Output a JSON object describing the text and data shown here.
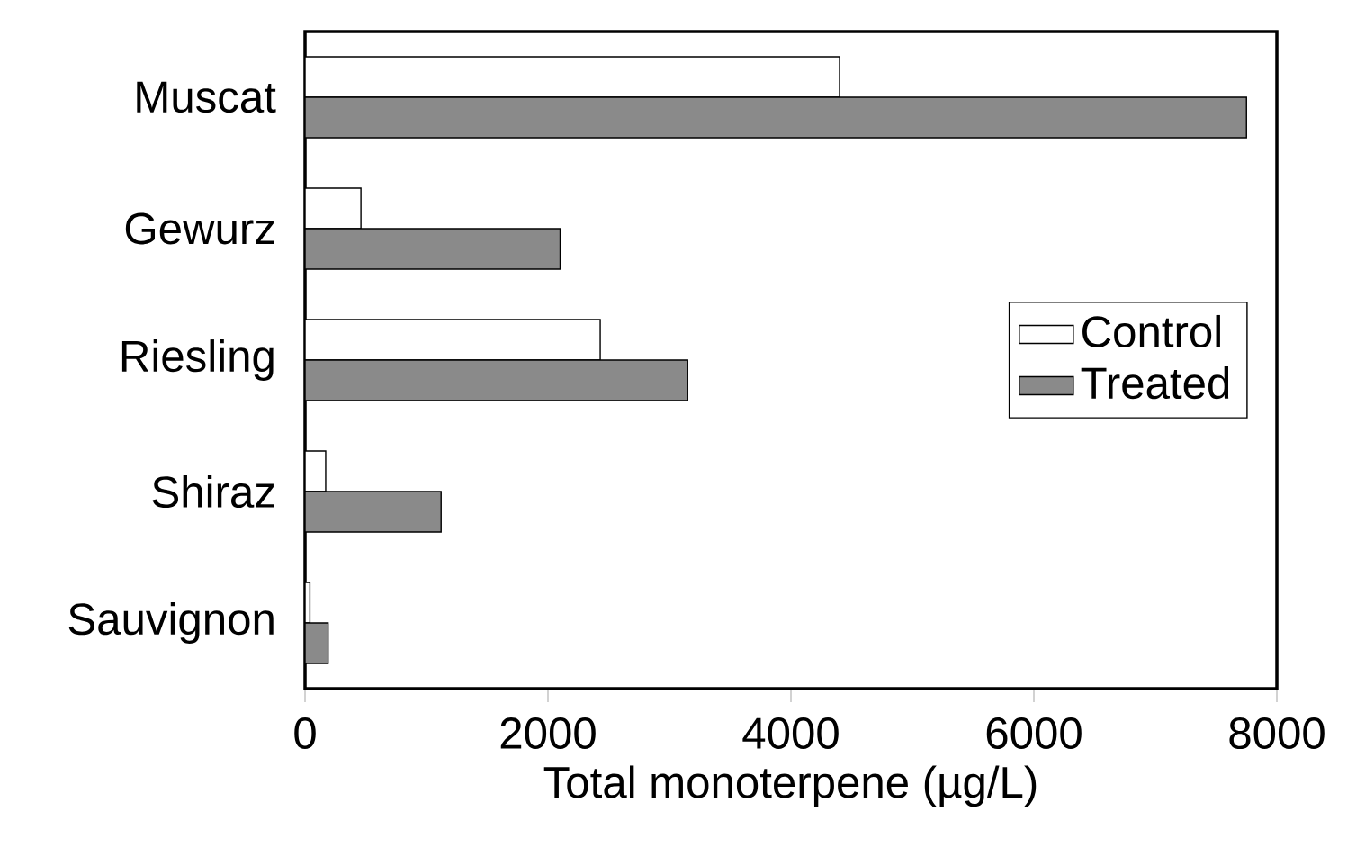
{
  "chart_data": {
    "type": "bar",
    "orientation": "horizontal",
    "xlabel": "Total monoterpene (µg/L)",
    "categories": [
      "Muscat",
      "Gewurz",
      "Riesling",
      "Shiraz",
      "Sauvignon"
    ],
    "series": [
      {
        "name": "Control",
        "color": "#ffffff",
        "values": [
          4400,
          460,
          2430,
          170,
          40
        ]
      },
      {
        "name": "Treated",
        "color": "#8a8a8a",
        "values": [
          7750,
          2100,
          3150,
          1120,
          190
        ]
      }
    ],
    "xlim": [
      0,
      8000
    ],
    "xticks": [
      0,
      2000,
      4000,
      6000,
      8000
    ],
    "legend": "right"
  }
}
